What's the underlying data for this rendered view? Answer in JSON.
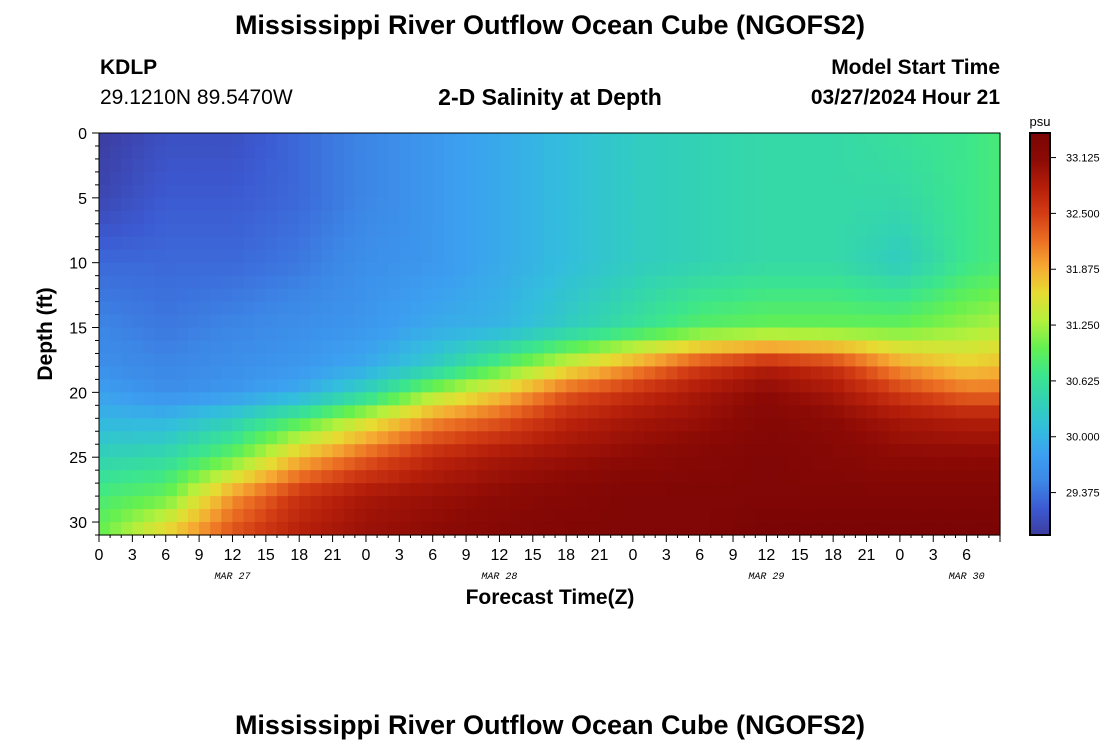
{
  "page": {
    "title": "Mississippi River Outflow Ocean Cube (NGOFS2)",
    "title_repeat": "Mississippi River Outflow Ocean Cube (NGOFS2)",
    "station": "KDLP",
    "coords": "29.1210N  89.5470W",
    "subtitle": "2-D Salinity at Depth",
    "model_start_label": "Model Start Time",
    "model_start_value": "03/27/2024 Hour 21"
  },
  "colors": {
    "ramp": [
      "#3c3ca0",
      "#3c5ad2",
      "#3c87e6",
      "#3ca0f0",
      "#32bedc",
      "#32d2b4",
      "#3ce68c",
      "#64f050",
      "#b4f03c",
      "#e6dc32",
      "#f5aa32",
      "#eb6e23",
      "#d23c14",
      "#b41e0a",
      "#8c0a05",
      "#7a0505"
    ]
  },
  "chart_data": {
    "type": "heatmap",
    "title": "2-D Salinity at Depth",
    "xlabel": "Forecast Time(Z)",
    "ylabel": "Depth (ft)",
    "ylim": [
      0,
      31
    ],
    "xlim_hours": [
      0,
      81
    ],
    "x_tick_labels": [
      "0",
      "3",
      "6",
      "9",
      "12",
      "15",
      "18",
      "21",
      "0",
      "3",
      "6",
      "9",
      "12",
      "15",
      "18",
      "21",
      "0",
      "3",
      "6",
      "9",
      "12",
      "15",
      "18",
      "21",
      "0",
      "3",
      "6"
    ],
    "y_ticks": [
      0,
      5,
      10,
      15,
      20,
      25,
      30
    ],
    "date_labels": [
      {
        "label": "MAR 27",
        "hour": 12
      },
      {
        "label": "MAR 28",
        "hour": 36
      },
      {
        "label": "MAR 29",
        "hour": 60
      },
      {
        "label": "MAR 30",
        "hour": 78
      }
    ],
    "colorbar": {
      "unit": "psu",
      "min": 28.9,
      "max": 33.4,
      "ticks": [
        "33.125",
        "32.500",
        "31.875",
        "31.250",
        "30.625",
        "30.000",
        "29.375"
      ]
    },
    "salinity_profiles": {
      "hours": [
        0,
        6,
        12,
        18,
        24,
        30,
        36,
        42,
        48,
        54,
        60,
        66,
        72,
        78,
        81
      ],
      "depths_ft": [
        0,
        5,
        10,
        15,
        18,
        20,
        22,
        25,
        28,
        31
      ],
      "values_psu": [
        [
          28.9,
          29.0,
          29.3,
          29.5,
          29.6,
          29.8,
          30.0,
          30.4,
          30.8,
          31.0
        ],
        [
          29.1,
          29.2,
          29.3,
          29.4,
          29.5,
          29.6,
          30.0,
          30.5,
          31.0,
          31.7
        ],
        [
          29.1,
          29.2,
          29.3,
          29.5,
          29.6,
          29.7,
          30.3,
          31.0,
          32.0,
          32.4
        ],
        [
          29.3,
          29.3,
          29.4,
          29.6,
          29.7,
          29.9,
          30.8,
          31.8,
          32.6,
          32.8
        ],
        [
          29.5,
          29.5,
          29.6,
          29.7,
          29.9,
          30.4,
          31.4,
          32.3,
          32.9,
          33.0
        ],
        [
          29.7,
          29.7,
          29.7,
          29.9,
          30.3,
          31.2,
          32.0,
          32.7,
          33.0,
          33.1
        ],
        [
          29.9,
          29.9,
          29.9,
          30.0,
          30.9,
          31.7,
          32.3,
          32.9,
          33.1,
          33.2
        ],
        [
          30.1,
          30.1,
          30.1,
          30.3,
          31.5,
          32.3,
          32.7,
          33.0,
          33.2,
          33.3
        ],
        [
          30.3,
          30.3,
          30.3,
          30.6,
          32.0,
          32.6,
          32.9,
          33.1,
          33.3,
          33.3
        ],
        [
          30.4,
          30.4,
          30.4,
          30.9,
          32.5,
          32.9,
          33.0,
          33.2,
          33.3,
          33.3
        ],
        [
          30.5,
          30.5,
          30.5,
          31.0,
          32.8,
          33.1,
          33.2,
          33.3,
          33.3,
          33.4
        ],
        [
          30.5,
          30.5,
          30.5,
          31.0,
          32.6,
          32.9,
          33.1,
          33.2,
          33.3,
          33.4
        ],
        [
          30.6,
          30.5,
          30.3,
          31.0,
          32.0,
          32.5,
          32.9,
          33.1,
          33.3,
          33.4
        ],
        [
          30.7,
          30.7,
          30.7,
          31.2,
          31.7,
          32.2,
          32.8,
          33.1,
          33.3,
          33.4
        ],
        [
          30.8,
          30.8,
          30.8,
          31.3,
          31.8,
          32.2,
          32.8,
          33.1,
          33.3,
          33.4
        ]
      ]
    }
  }
}
